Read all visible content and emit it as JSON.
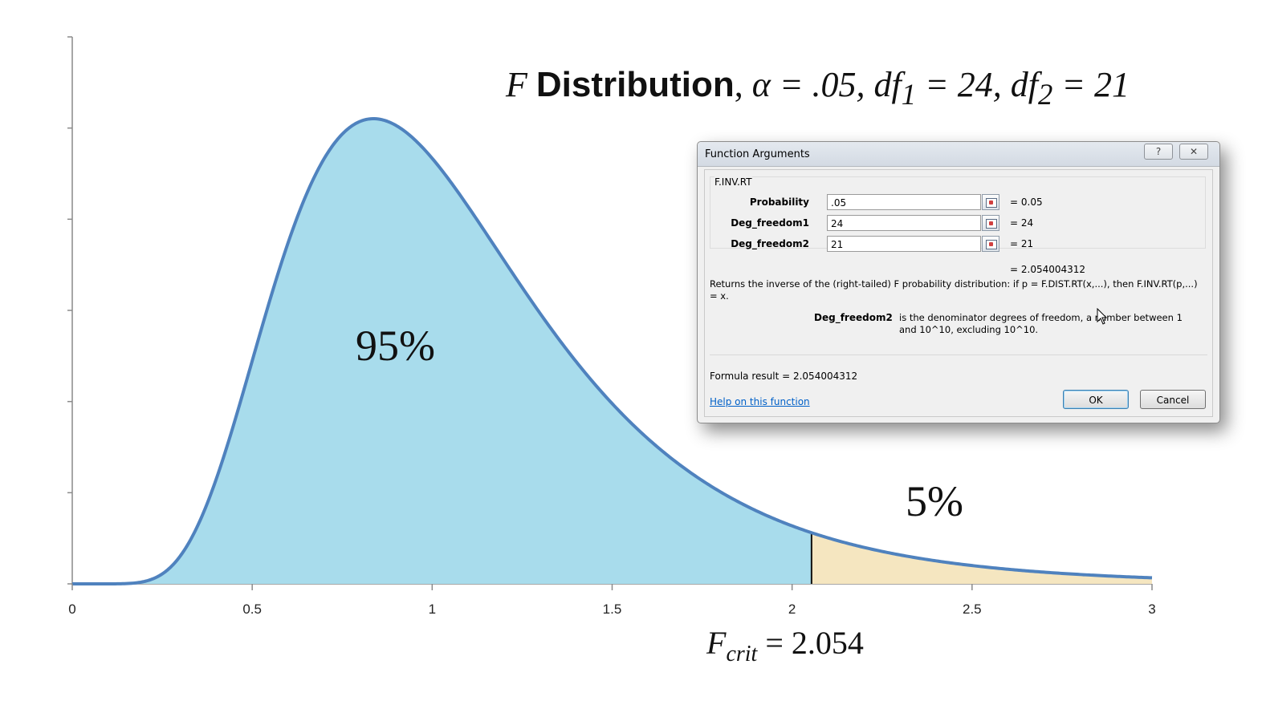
{
  "chart_data": {
    "type": "area",
    "title": "F Distribution, α = .05, df1 = 24, df2 = 21",
    "title_parts": {
      "f": "F",
      "word": "Distribution",
      "params": "α = .05, df",
      "d1sub": "1",
      "eq1": " = 24, df",
      "d2sub": "2",
      "eq2": " = 21"
    },
    "distribution": "F",
    "df1": 24,
    "df2": 21,
    "alpha": 0.05,
    "xlim": [
      0,
      3
    ],
    "x_ticks": [
      "0",
      "0.5",
      "1",
      "1.5",
      "2",
      "2.5",
      "3"
    ],
    "y_ticks_count": 6,
    "f_crit": 2.054,
    "regions": [
      {
        "label": "95%",
        "from": 0,
        "to": 2.054,
        "color": "#a8dcec"
      },
      {
        "label": "5%",
        "from": 2.054,
        "to": 3,
        "color": "#f5e6c0"
      }
    ],
    "curve_color": "#4f82be",
    "fcrit_label": {
      "f": "F",
      "sub": "crit",
      "rest": " = 2.054"
    }
  },
  "dialog": {
    "title": "Function Arguments",
    "help_glyph": "?",
    "close_glyph": "✕",
    "function_name": "F.INV.RT",
    "args": [
      {
        "label": "Probability",
        "value": ".05",
        "result": "=  0.05"
      },
      {
        "label": "Deg_freedom1",
        "value": "24",
        "result": "=  24"
      },
      {
        "label": "Deg_freedom2",
        "value": "21",
        "result": "=  21"
      }
    ],
    "result_line": "=  2.054004312",
    "description": "Returns the inverse of the (right-tailed) F probability distribution: if p = F.DIST.RT(x,...), then F.INV.RT(p,...) = x.",
    "param_name": "Deg_freedom2",
    "param_desc": "is the denominator degrees of freedom, a number between 1 and 10^10, excluding 10^10.",
    "formula_result": "Formula result =   2.054004312",
    "help_link": "Help on this function",
    "ok_label": "OK",
    "cancel_label": "Cancel"
  }
}
